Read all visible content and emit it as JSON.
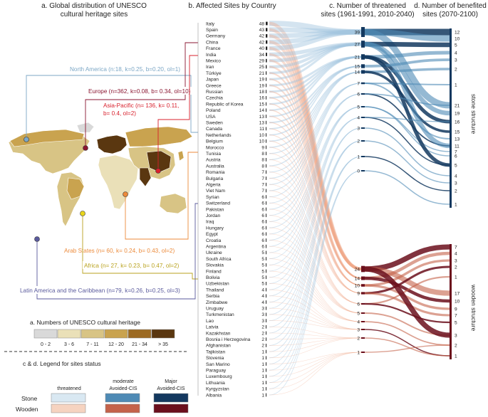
{
  "panels": {
    "a_title_line1": "a. Global distribution of UNESCO",
    "a_title_line2": "cultural heritage sites",
    "b_title": "b.  Affected Sites by Country",
    "c_title_line1": "c. Number of threatened",
    "c_title_line2": "sites (1961-1991, 2010-2040)",
    "d_title_line1": "d. Number of benefited",
    "d_title_line2": "sites (2070-2100)"
  },
  "regions": [
    {
      "key": "north-america",
      "line1": "North America (n:18, k=0.25, b=0.20, ol=1)",
      "line2": "",
      "color": "#7ca7c6"
    },
    {
      "key": "europe",
      "line1": "Europe (n=362, k=0.08, b= 0.34, ol=10)",
      "line2": "",
      "color": "#8a1530"
    },
    {
      "key": "asia-pacific",
      "line1": "Asia-Pacific (n= 136, k= 0.11,",
      "line2": "b= 0.4, ol=2)",
      "color": "#d8202c"
    },
    {
      "key": "arab-states",
      "line1": "Arab States (n= 60, k= 0.24, b= 0.43, ol=2)",
      "line2": "",
      "color": "#ec8a3a"
    },
    {
      "key": "africa",
      "line1": "Africa (n= 27, k= 0.23, b= 0.47, ol=2)",
      "line2": "",
      "color": "#b9a21e"
    },
    {
      "key": "latin-america",
      "line1": "Latin America and the Caribbean (n=79, k=0.26, b=0.25, ol=3)",
      "line2": "",
      "color": "#5a5a9c"
    }
  ],
  "map_legend": {
    "title": "a.  Numbers of UNESCO cultural heritage",
    "bins": [
      {
        "label": "0 - 2",
        "color": "#d9d9d9"
      },
      {
        "label": "3 - 6",
        "color": "#eae0b8"
      },
      {
        "label": "7 - 11",
        "color": "#d8c485"
      },
      {
        "label": "12 - 20",
        "color": "#c9a34f"
      },
      {
        "label": "21 - 34",
        "color": "#9c6a22"
      },
      {
        "label": "> 35",
        "color": "#5a3710"
      }
    ]
  },
  "status_legend": {
    "title": "c & d.  Legend for sites status",
    "col_threatened": "threatened",
    "col_moderate_line1": "moderate",
    "col_moderate_line2": "Avoided-CIS",
    "col_major_line1": "Major",
    "col_major_line2": "Avoided-CIS",
    "row_stone": "Stone",
    "row_wooden": "Wooden",
    "colors": {
      "stone_threatened": "#d9e8f2",
      "stone_moderate": "#4e8ab5",
      "stone_major": "#13385f",
      "wooden_threatened": "#f6d3c0",
      "wooden_moderate": "#c4624a",
      "wooden_major": "#6b0f1c"
    }
  },
  "structure_labels": {
    "stone": "stone structure",
    "wooden": "wooden structure"
  },
  "chart_data": {
    "type": "sankey",
    "countries": [
      {
        "name": "Italy",
        "value": 48
      },
      {
        "name": "Spain",
        "value": 43
      },
      {
        "name": "Germany",
        "value": 42
      },
      {
        "name": "China",
        "value": 42
      },
      {
        "name": "France",
        "value": 40
      },
      {
        "name": "India",
        "value": 34
      },
      {
        "name": "Mexico",
        "value": 29
      },
      {
        "name": "Iran",
        "value": 25
      },
      {
        "name": "Türkiye",
        "value": 21
      },
      {
        "name": "Japan",
        "value": 19
      },
      {
        "name": "Greece",
        "value": 19
      },
      {
        "name": "Russian",
        "value": 18
      },
      {
        "name": "Czechia",
        "value": 16
      },
      {
        "name": "Republic of Korea",
        "value": 15
      },
      {
        "name": "Poland",
        "value": 14
      },
      {
        "name": "USA",
        "value": 13
      },
      {
        "name": "Sweden",
        "value": 13
      },
      {
        "name": "Canada",
        "value": 11
      },
      {
        "name": "Netherlands",
        "value": 10
      },
      {
        "name": "Belgium",
        "value": 10
      },
      {
        "name": "Morocco",
        "value": 9
      },
      {
        "name": "Tunisia",
        "value": 8
      },
      {
        "name": "Austria",
        "value": 8
      },
      {
        "name": "Australia",
        "value": 8
      },
      {
        "name": "Romania",
        "value": 7
      },
      {
        "name": "Bulgaria",
        "value": 7
      },
      {
        "name": "Algeria",
        "value": 7
      },
      {
        "name": "Viet Nam",
        "value": 7
      },
      {
        "name": "Syrian",
        "value": 6
      },
      {
        "name": "Switzerland",
        "value": 6
      },
      {
        "name": "Pakistan",
        "value": 6
      },
      {
        "name": "Jordan",
        "value": 6
      },
      {
        "name": "Iraq",
        "value": 6
      },
      {
        "name": "Hungary",
        "value": 6
      },
      {
        "name": "Egypt",
        "value": 6
      },
      {
        "name": "Croatia",
        "value": 6
      },
      {
        "name": "Argentina",
        "value": 6
      },
      {
        "name": "Ukraine",
        "value": 5
      },
      {
        "name": "South Africa",
        "value": 5
      },
      {
        "name": "Slovakia",
        "value": 5
      },
      {
        "name": "Finland",
        "value": 5
      },
      {
        "name": "Bolivia",
        "value": 5
      },
      {
        "name": "Uzbekistan",
        "value": 5
      },
      {
        "name": "Thailand",
        "value": 4
      },
      {
        "name": "Serbia",
        "value": 4
      },
      {
        "name": "Zimbabwe",
        "value": 4
      },
      {
        "name": "Uruguay",
        "value": 3
      },
      {
        "name": "Turkmenistan",
        "value": 3
      },
      {
        "name": "Lao",
        "value": 3
      },
      {
        "name": "Latvia",
        "value": 2
      },
      {
        "name": "Kazakhstan",
        "value": 2
      },
      {
        "name": "Bosnia i Herzegovina",
        "value": 2
      },
      {
        "name": "Afghanistan",
        "value": 2
      },
      {
        "name": "Tajikistan",
        "value": 1
      },
      {
        "name": "Slovenia",
        "value": 1
      },
      {
        "name": "San Marino",
        "value": 1
      },
      {
        "name": "Paraguay",
        "value": 1
      },
      {
        "name": "Luxembourg",
        "value": 1
      },
      {
        "name": "Lithuania",
        "value": 1
      },
      {
        "name": "Kyrgyzstan",
        "value": 1
      },
      {
        "name": "Albania",
        "value": 1
      }
    ],
    "threatened_stone": [
      39,
      27,
      21,
      15,
      14,
      7,
      6,
      5,
      4,
      3,
      2,
      1,
      0
    ],
    "threatened_wooden": [
      24,
      14,
      10,
      9,
      6,
      5,
      4,
      3,
      2,
      1
    ],
    "benefited_stone": [
      12,
      10,
      5,
      4,
      3,
      2,
      1,
      21,
      19,
      16,
      15,
      13,
      11,
      7,
      6,
      5,
      4,
      3,
      2,
      1
    ],
    "benefited_wooden": [
      7,
      4,
      3,
      2,
      1,
      17,
      10,
      9,
      7,
      5,
      3,
      2,
      1
    ]
  }
}
